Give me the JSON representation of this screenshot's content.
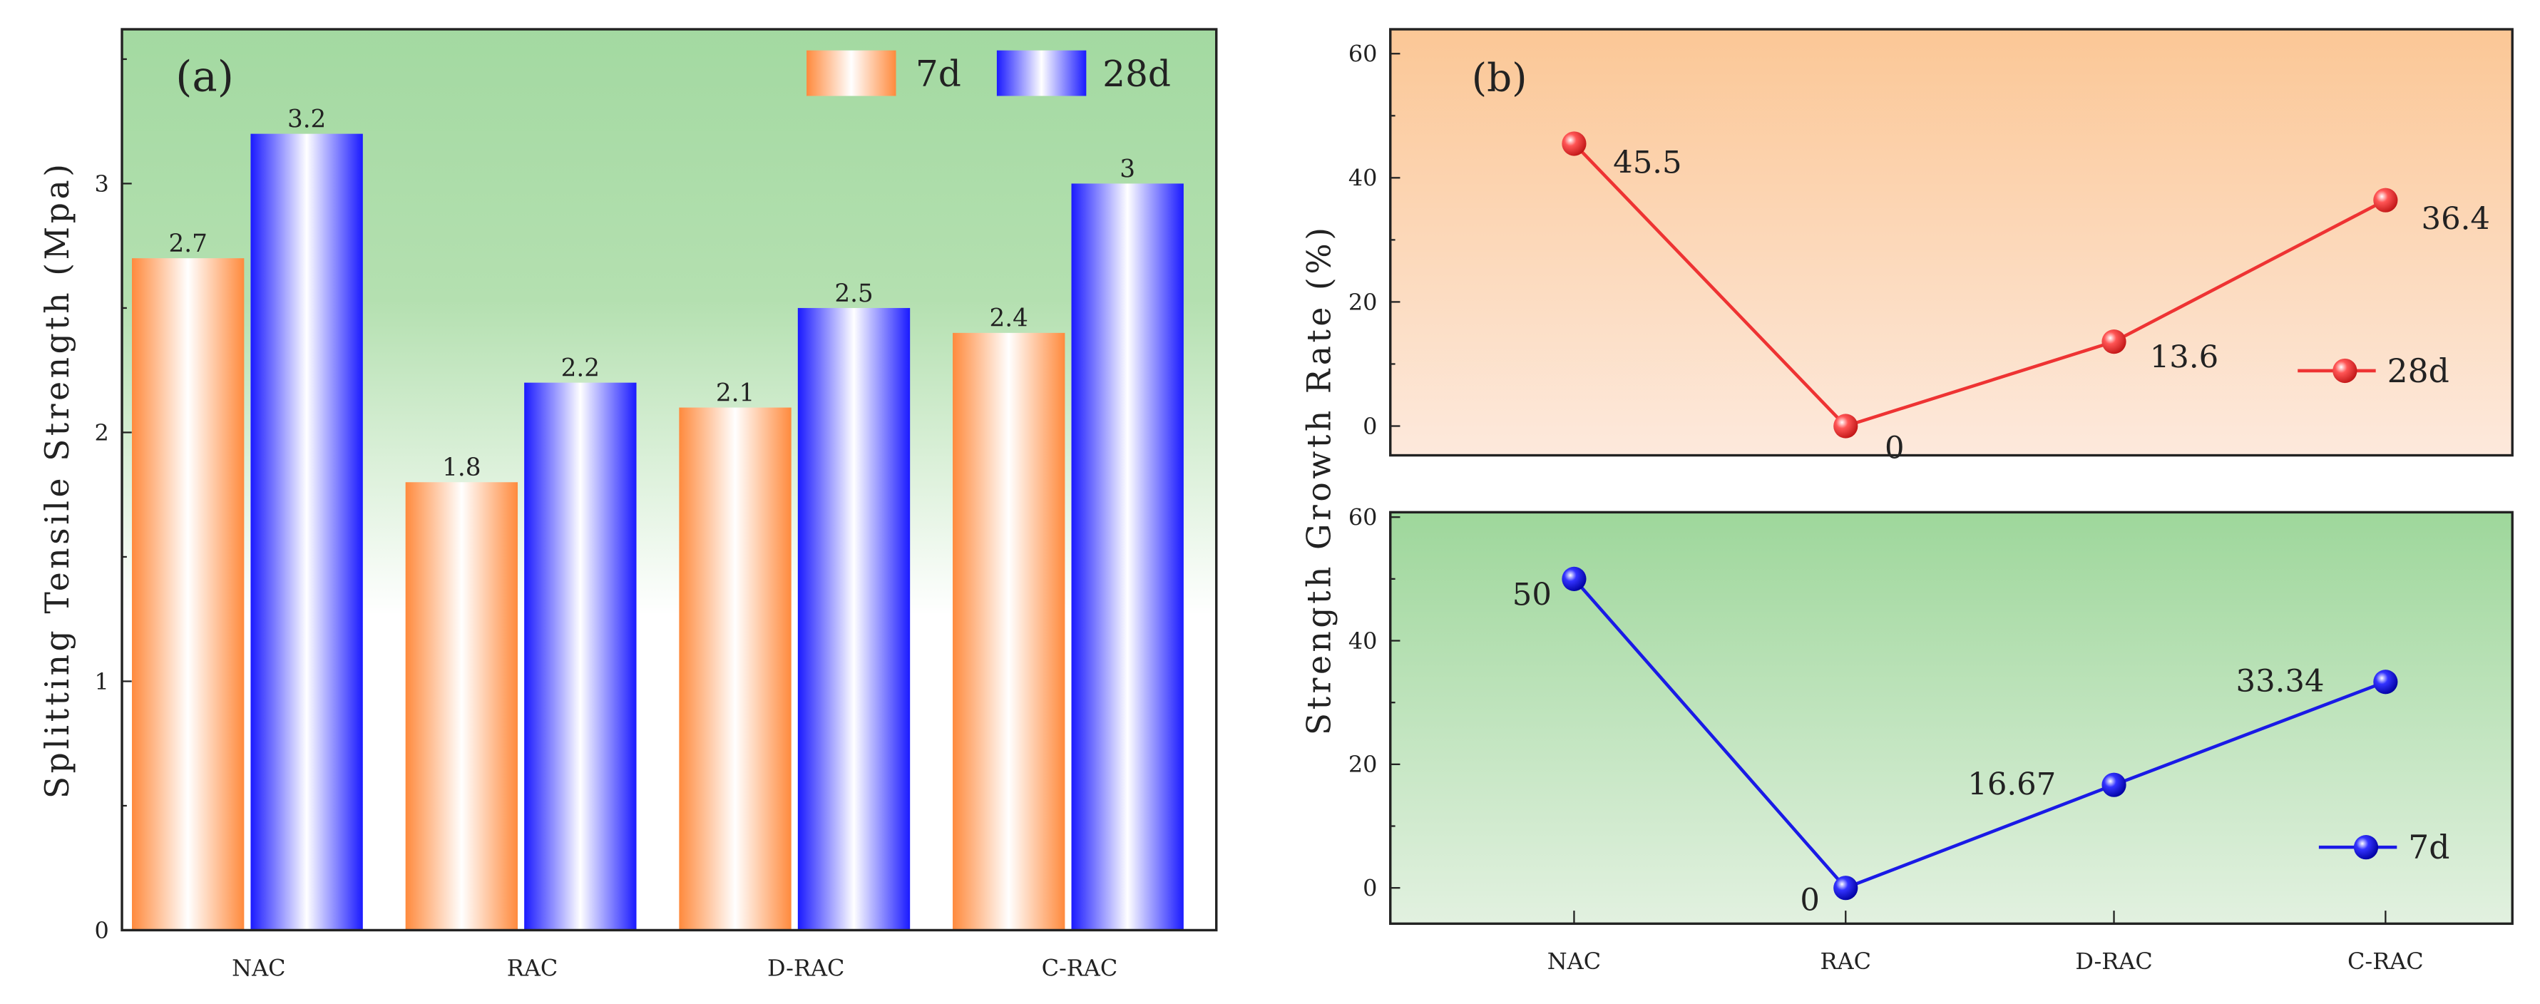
{
  "chart_data": [
    {
      "type": "bar",
      "panel_label": "(a)",
      "title": "",
      "xlabel": "",
      "ylabel": "Splitting Tensile Strength (Mpa)",
      "categories": [
        "NAC",
        "RAC",
        "D-RAC",
        "C-RAC"
      ],
      "series": [
        {
          "name": "7d",
          "values": [
            2.7,
            1.8,
            2.1,
            2.4
          ],
          "labels": [
            "2.7",
            "1.8",
            "2.1",
            "2.4"
          ],
          "color": "#ff8a3d"
        },
        {
          "name": "28d",
          "values": [
            3.2,
            2.2,
            2.5,
            3.0
          ],
          "labels": [
            "3.2",
            "2.2",
            "2.5",
            "3"
          ],
          "color": "#1a1aff"
        }
      ],
      "ylim": [
        0,
        3.62
      ],
      "yticks": [
        "0",
        "1",
        "2",
        "3"
      ],
      "legend": "top-right",
      "grid": false
    },
    {
      "type": "line",
      "panel_label": "(b)",
      "ylabel": "Strength Growth Rate (%)",
      "categories": [
        "NAC",
        "RAC",
        "D-RAC",
        "C-RAC"
      ],
      "panels": [
        {
          "series": [
            {
              "name": "28d",
              "values": [
                45.5,
                0,
                13.6,
                36.4
              ],
              "labels": [
                "45.5",
                "0",
                "13.6",
                "36.4"
              ],
              "color": "#ee3333"
            }
          ],
          "ylim": [
            -5,
            60
          ],
          "yticks": [
            "0",
            "20",
            "40",
            "60"
          ],
          "legend": "right"
        },
        {
          "series": [
            {
              "name": "7d",
              "values": [
                50,
                0,
                16.67,
                33.34
              ],
              "labels": [
                "50",
                "0",
                "16.67",
                "33.34"
              ],
              "color": "#1a1ae6"
            }
          ],
          "ylim": [
            -5,
            60
          ],
          "yticks": [
            "0",
            "20",
            "40",
            "60"
          ],
          "legend": "bottom-right"
        }
      ],
      "grid": false
    }
  ]
}
